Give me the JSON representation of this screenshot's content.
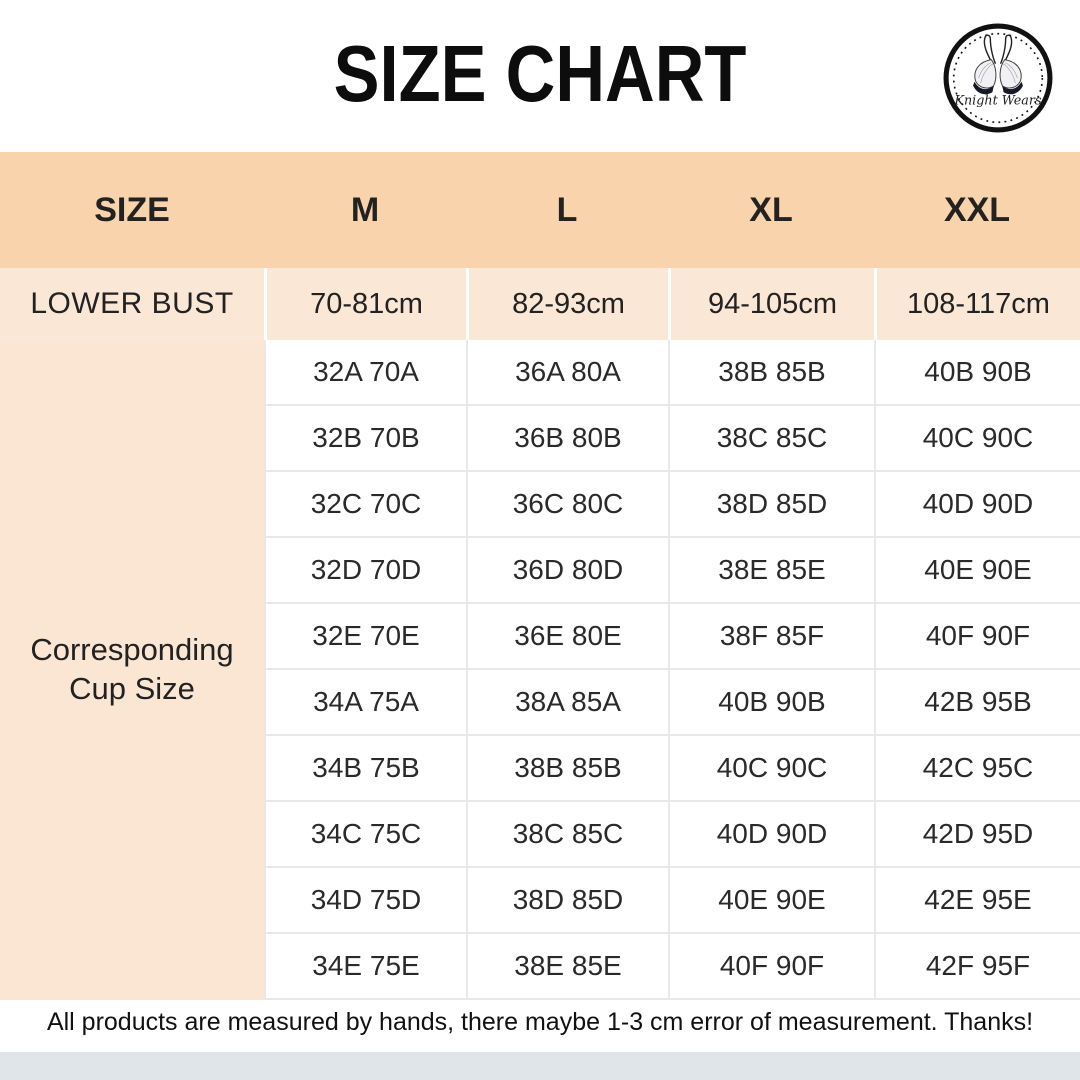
{
  "title": "SIZE CHART",
  "logo": {
    "brand": "Knight Wears",
    "icon": "bra-icon"
  },
  "table": {
    "header": [
      "SIZE",
      "M",
      "L",
      "XL",
      "XXL"
    ],
    "lower_bust": {
      "label": "LOWER BUST",
      "values": [
        "70-81cm",
        "82-93cm",
        "94-105cm",
        "108-117cm"
      ]
    },
    "cup_label": "Corresponding Cup Size",
    "cup_rows": [
      [
        "32A 70A",
        "36A 80A",
        "38B 85B",
        "40B 90B"
      ],
      [
        "32B 70B",
        "36B 80B",
        "38C 85C",
        "40C 90C"
      ],
      [
        "32C 70C",
        "36C 80C",
        "38D 85D",
        "40D 90D"
      ],
      [
        "32D 70D",
        "36D 80D",
        "38E 85E",
        "40E 90E"
      ],
      [
        "32E 70E",
        "36E 80E",
        "38F 85F",
        "40F 90F"
      ],
      [
        "34A 75A",
        "38A 85A",
        "40B 90B",
        "42B 95B"
      ],
      [
        "34B 75B",
        "38B 85B",
        "40C 90C",
        "42C 95C"
      ],
      [
        "34C 75C",
        "38C 85C",
        "40D 90D",
        "42D 95D"
      ],
      [
        "34D 75D",
        "38D 85D",
        "40E 90E",
        "42E 95E"
      ],
      [
        "34E 75E",
        "38E 85E",
        "40F 90F",
        "42F 95F"
      ]
    ]
  },
  "footer": {
    "note": "All products are measured by hands, there maybe 1-3 cm error of measurement. Thanks!"
  },
  "colors": {
    "header_bg": "#f9d3ab",
    "subheader_bg": "#fbe7d5",
    "cup_label_bg": "#fae6d3",
    "grid_line": "#e8e8e8",
    "bottom_band": "#dfe5e8",
    "text": "#1f1f1f"
  }
}
